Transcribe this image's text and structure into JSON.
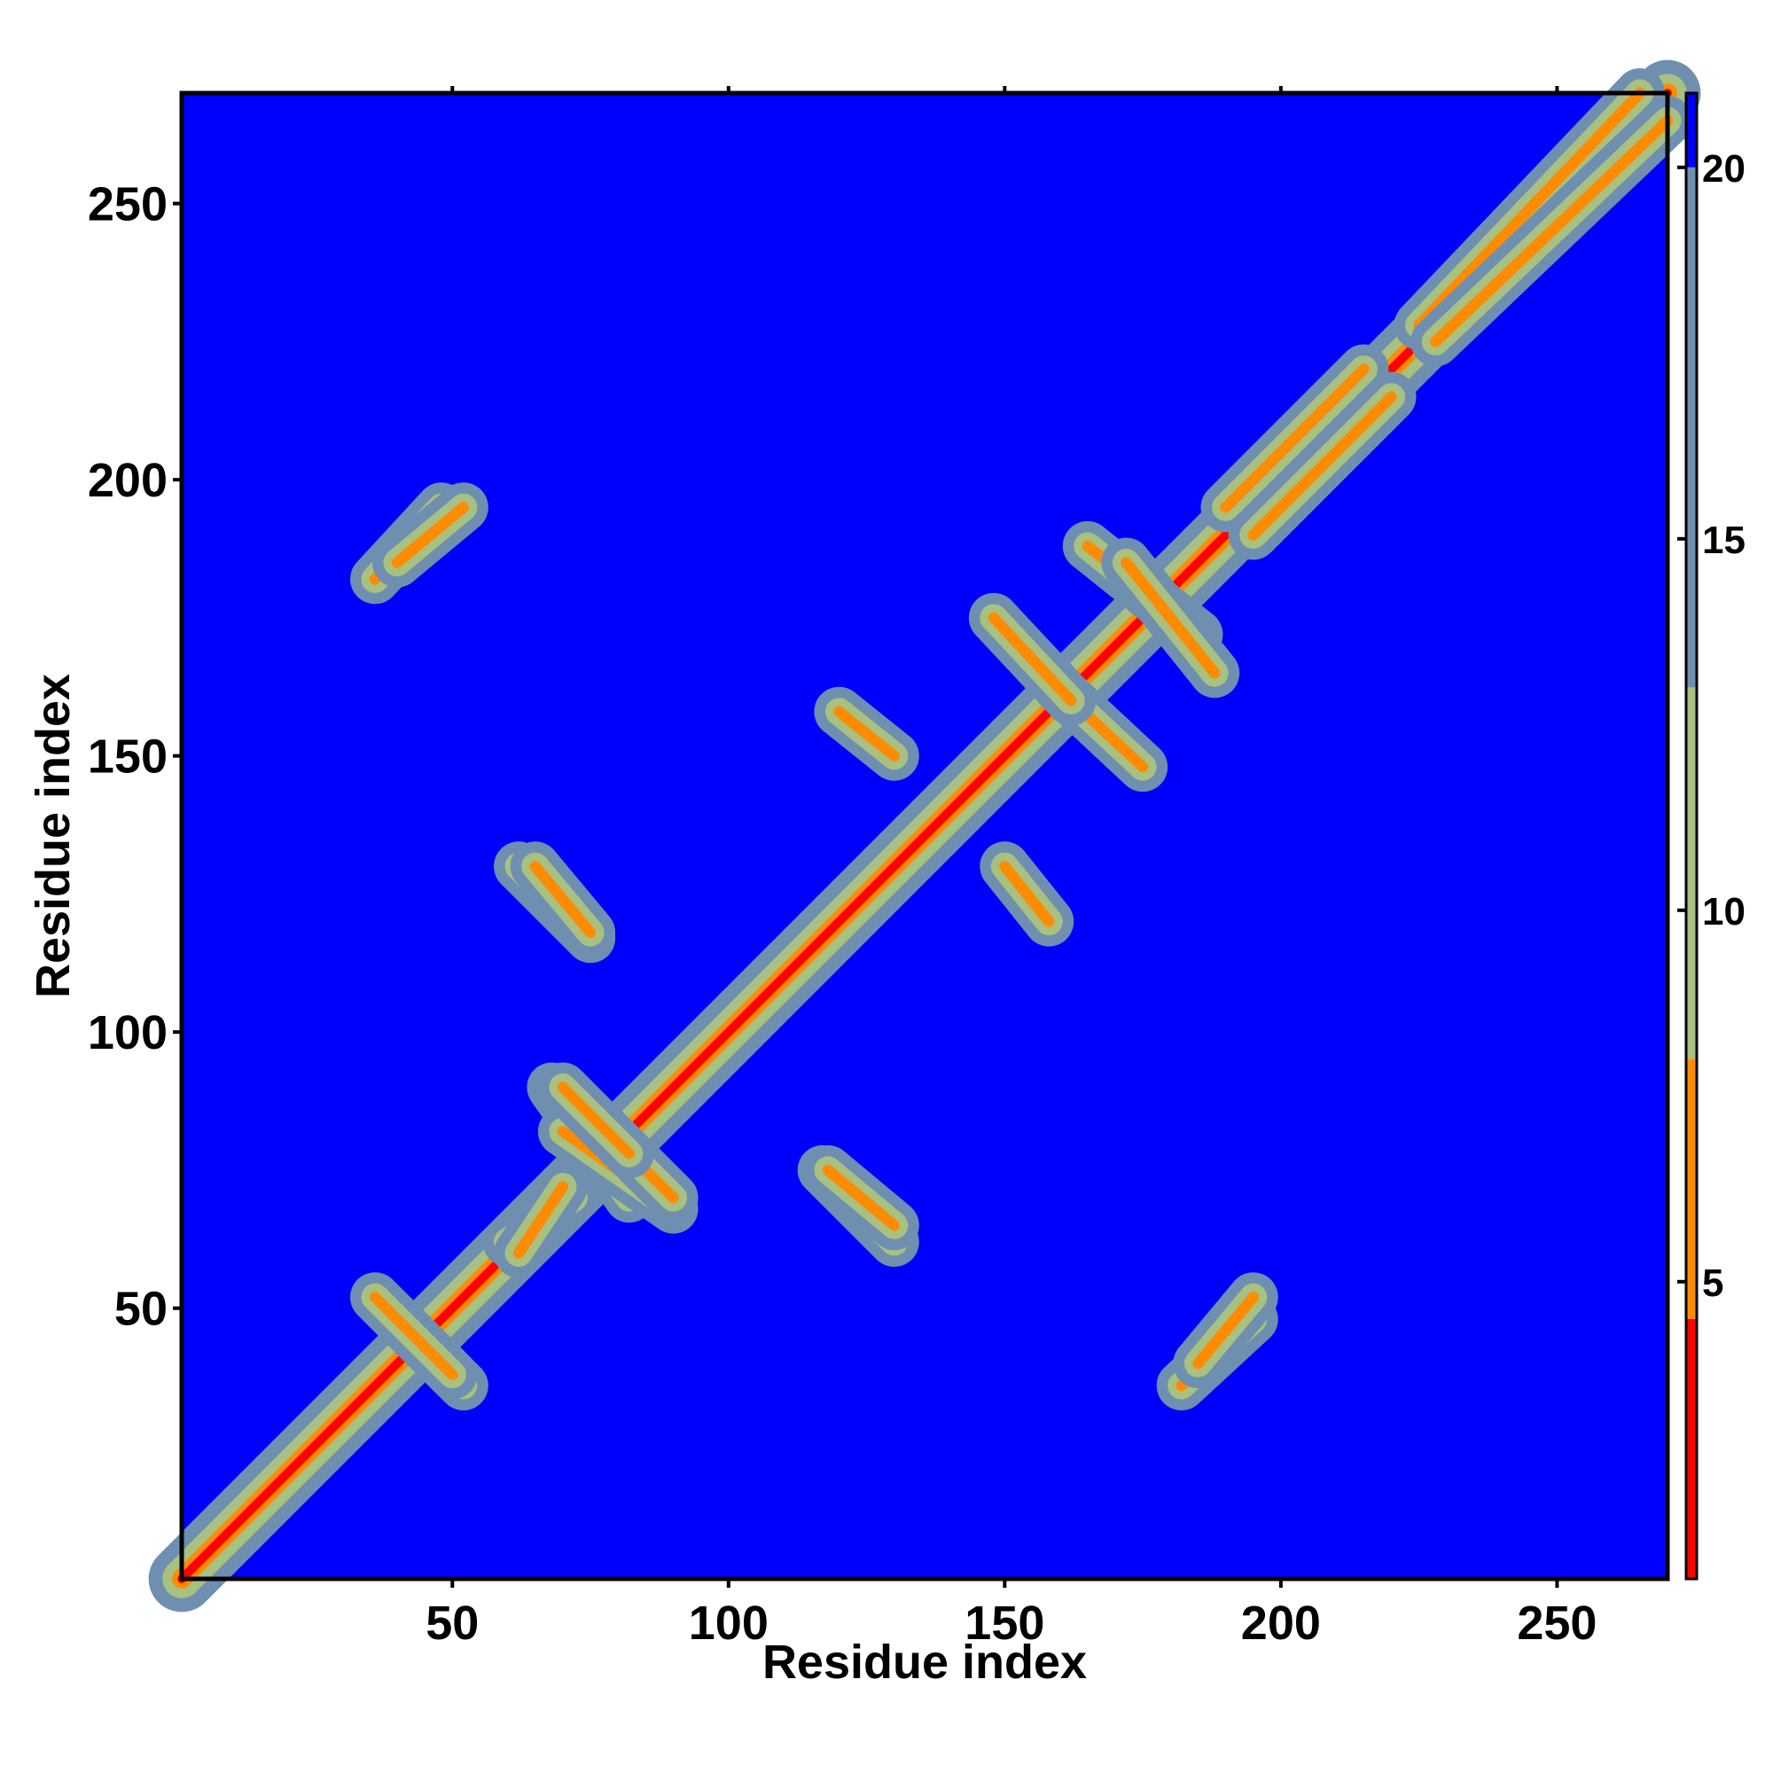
{
  "chart_data": {
    "type": "heatmap",
    "title": "",
    "xlabel": "Residue index",
    "ylabel": "Residue index",
    "xlim": [
      1,
      270
    ],
    "ylim": [
      1,
      270
    ],
    "x_ticks": [
      50,
      100,
      150,
      200,
      250
    ],
    "y_ticks": [
      50,
      100,
      150,
      200,
      250
    ],
    "x_tick_labels": [
      "50",
      "100",
      "150",
      "200",
      "250"
    ],
    "y_tick_labels": [
      "50",
      "100",
      "150",
      "200",
      "250"
    ],
    "colorbar": {
      "range": [
        1,
        21
      ],
      "ticks": [
        5,
        10,
        15,
        20
      ],
      "tick_labels": [
        "5",
        "10",
        "15",
        "20"
      ],
      "colors": {
        "low": "#ff0000",
        "mid_low": "#ff8c00",
        "mid": "#a8c080",
        "high": "#6f8fb0",
        "background": "#0000ff"
      }
    },
    "symmetric": true,
    "grid": false,
    "matrix_description_values": {
      "diagonal_distance": 1,
      "near_diagonal_band_width_residues": 5,
      "contact_bands": [
        {
          "x": [
            38,
            52
          ],
          "y": [
            36,
            50
          ],
          "kind": "antiparallel"
        },
        {
          "x": [
            60,
            72
          ],
          "y": [
            62,
            70
          ],
          "kind": "near-diagonal"
        },
        {
          "x": [
            68,
            82
          ],
          "y": [
            70,
            90
          ],
          "kind": "antiparallel"
        },
        {
          "x": [
            78,
            90
          ],
          "y": [
            70,
            82
          ],
          "kind": "antiparallel"
        },
        {
          "x": [
            117,
            130
          ],
          "y": [
            62,
            75
          ],
          "kind": "antiparallel"
        },
        {
          "x": [
            65,
            75
          ],
          "y": [
            118,
            130
          ],
          "kind": "antiparallel"
        },
        {
          "x": [
            150,
            158
          ],
          "y": [
            120,
            130
          ],
          "kind": "antiparallel"
        },
        {
          "x": [
            160,
            175
          ],
          "y": [
            148,
            162
          ],
          "kind": "antiparallel"
        },
        {
          "x": [
            165,
            185
          ],
          "y": [
            172,
            188
          ],
          "kind": "antiparallel"
        },
        {
          "x": [
            36,
            48
          ],
          "y": [
            182,
            195
          ],
          "kind": "contact"
        },
        {
          "x": [
            185,
            195
          ],
          "y": [
            40,
            52
          ],
          "kind": "contact"
        },
        {
          "x": [
            190,
            215
          ],
          "y": [
            195,
            220
          ],
          "kind": "near-diagonal"
        },
        {
          "x": [
            225,
            265
          ],
          "y": [
            228,
            270
          ],
          "kind": "near-diagonal"
        }
      ]
    }
  }
}
